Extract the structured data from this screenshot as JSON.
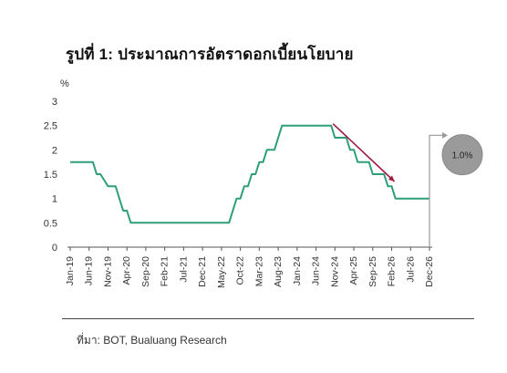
{
  "title": "รูปที่ 1: ประมาณการอัตราดอกเบี้ยนโยบาย",
  "source": "ที่มา: BOT, Bualuang Research",
  "colors": {
    "line": "#2e9e7a",
    "arrow": "#9c1b3f",
    "axis": "#555555",
    "bubble": "#9a9a9a",
    "bubble_text": "#222222",
    "connector": "#9a9a9a"
  },
  "chart_data": {
    "type": "line",
    "title": "",
    "xlabel": "",
    "ylabel": "%",
    "ylim": [
      0,
      3
    ],
    "y_ticks": [
      "0",
      "0.5",
      "1",
      "1.5",
      "2",
      "2.5",
      "3"
    ],
    "x_ticks": [
      "Jan-19",
      "Jun-19",
      "Nov-19",
      "Apr-20",
      "Sep-20",
      "Feb-21",
      "Jul-21",
      "Dec-21",
      "May-22",
      "Oct-22",
      "Mar-23",
      "Aug-23",
      "Jan-24",
      "Jun-24",
      "Nov-24",
      "Apr-25",
      "Sep-25",
      "Feb-26",
      "Jul-26",
      "Dec-26"
    ],
    "grid": false,
    "series": [
      {
        "x": [
          "Jan-19",
          "Jun-19",
          "Jul-19",
          "Aug-19",
          "Sep-19",
          "Nov-19",
          "Dec-19",
          "Jan-20",
          "Feb-20",
          "Mar-20",
          "Apr-20",
          "May-20",
          "Jun-20",
          "Aug-20",
          "Jun-22",
          "Jul-22",
          "Aug-22",
          "Sep-22",
          "Oct-22",
          "Nov-22",
          "Dec-22",
          "Jan-23",
          "Feb-23",
          "Mar-23",
          "Apr-23",
          "May-23",
          "Jun-23",
          "Jul-23",
          "Aug-23",
          "Sep-23",
          "Oct-23",
          "Nov-23",
          "Oct-24",
          "Nov-24",
          "Dec-24",
          "Jan-25",
          "Feb-25",
          "Mar-25",
          "Apr-25",
          "May-25",
          "Jun-25",
          "Jul-25",
          "Aug-25",
          "Sep-25",
          "Oct-25",
          "Nov-25",
          "Dec-25",
          "Jan-26",
          "Feb-26",
          "Mar-26",
          "Apr-26",
          "Dec-26"
        ],
        "values": [
          1.75,
          1.75,
          1.75,
          1.5,
          1.5,
          1.25,
          1.25,
          1.25,
          1.0,
          0.75,
          0.75,
          0.5,
          0.5,
          0.5,
          0.5,
          0.5,
          0.75,
          1.0,
          1.0,
          1.25,
          1.25,
          1.5,
          1.5,
          1.75,
          1.75,
          2.0,
          2.0,
          2.0,
          2.25,
          2.5,
          2.5,
          2.5,
          2.5,
          2.25,
          2.25,
          2.25,
          2.25,
          2.0,
          2.0,
          1.75,
          1.75,
          1.75,
          1.75,
          1.5,
          1.5,
          1.5,
          1.5,
          1.25,
          1.25,
          1.0,
          1.0,
          1.0
        ]
      }
    ],
    "callout": "1.0%"
  }
}
